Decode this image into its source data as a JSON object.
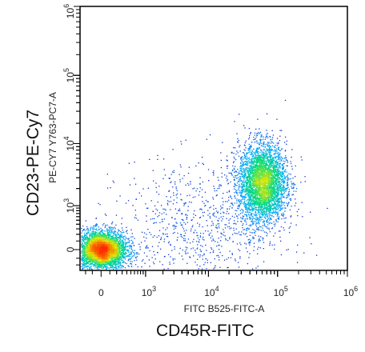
{
  "chart_data": {
    "type": "scatter",
    "x_scale": "biexponential",
    "y_scale": "biexponential",
    "xlabel": "FITC B525-FITC-A",
    "ylabel": "PE-CY7 Y763-PC7-A",
    "x_marker_label": "CD45R-FITC",
    "y_marker_label": "CD23-PE-Cy7",
    "xlim": [
      -300,
      1000000
    ],
    "ylim": [
      -300,
      1000000
    ],
    "x_ticks": [
      {
        "value": 0,
        "label": "0",
        "exp": ""
      },
      {
        "value": 1000,
        "label": "10",
        "exp": "3"
      },
      {
        "value": 10000,
        "label": "10",
        "exp": "4"
      },
      {
        "value": 100000,
        "label": "10",
        "exp": "5"
      },
      {
        "value": 1000000,
        "label": "10",
        "exp": "6"
      }
    ],
    "y_ticks": [
      {
        "value": 0,
        "label": "0",
        "exp": ""
      },
      {
        "value": 1000,
        "label": "10",
        "exp": "3"
      },
      {
        "value": 10000,
        "label": "10",
        "exp": "4"
      },
      {
        "value": 100000,
        "label": "10",
        "exp": "5"
      },
      {
        "value": 1000000,
        "label": "10",
        "exp": "6"
      }
    ],
    "grid": false,
    "colormap": "density (blue-cyan-green-yellow-red)",
    "populations": [
      {
        "name": "",
        "center_x": 0,
        "center_y": 0,
        "spread_x_decades": 0.18,
        "spread_y_decades": 0.14,
        "fraction": 0.45
      },
      {
        "name": "",
        "center_x": 60000,
        "center_y": 2500,
        "spread_x_decades": 0.17,
        "spread_y_decades": 0.28,
        "fraction": 0.45
      },
      {
        "name": "",
        "center_x": 8000,
        "center_y": 300,
        "spread_x_decades": 0.6,
        "spread_y_decades": 0.5,
        "fraction": 0.1
      }
    ],
    "total_events": 9000
  }
}
